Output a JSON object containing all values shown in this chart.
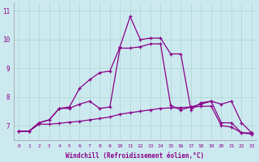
{
  "xlabel": "Windchill (Refroidissement éolien,°C)",
  "background_color": "#cde9f0",
  "grid_color": "#a8d8cc",
  "line_color": "#880088",
  "x_hours": [
    0,
    1,
    2,
    3,
    4,
    5,
    6,
    7,
    8,
    9,
    10,
    11,
    12,
    13,
    14,
    15,
    16,
    17,
    18,
    19,
    20,
    21,
    22,
    23
  ],
  "line_top_y": [
    6.8,
    6.8,
    7.1,
    7.2,
    7.6,
    7.65,
    8.3,
    8.6,
    8.85,
    8.9,
    9.75,
    10.8,
    10.0,
    10.05,
    10.05,
    9.5,
    9.5,
    7.55,
    7.8,
    7.85,
    7.1,
    7.1,
    6.75,
    6.75
  ],
  "line_mid_y": [
    6.8,
    6.8,
    7.1,
    7.2,
    7.6,
    7.6,
    7.75,
    7.85,
    7.6,
    7.65,
    9.7,
    9.7,
    9.75,
    9.85,
    9.85,
    7.7,
    7.55,
    7.65,
    7.75,
    7.85,
    7.75,
    7.85,
    7.1,
    6.75
  ],
  "line_bot_y": [
    6.8,
    6.8,
    7.05,
    7.05,
    7.08,
    7.12,
    7.15,
    7.2,
    7.25,
    7.3,
    7.4,
    7.45,
    7.5,
    7.55,
    7.6,
    7.62,
    7.63,
    7.65,
    7.67,
    7.68,
    7.0,
    6.95,
    6.75,
    6.7
  ],
  "ylim": [
    6.5,
    11.3
  ],
  "yticks": [
    7,
    8,
    9,
    10,
    11
  ],
  "xlim": [
    -0.5,
    23.5
  ]
}
